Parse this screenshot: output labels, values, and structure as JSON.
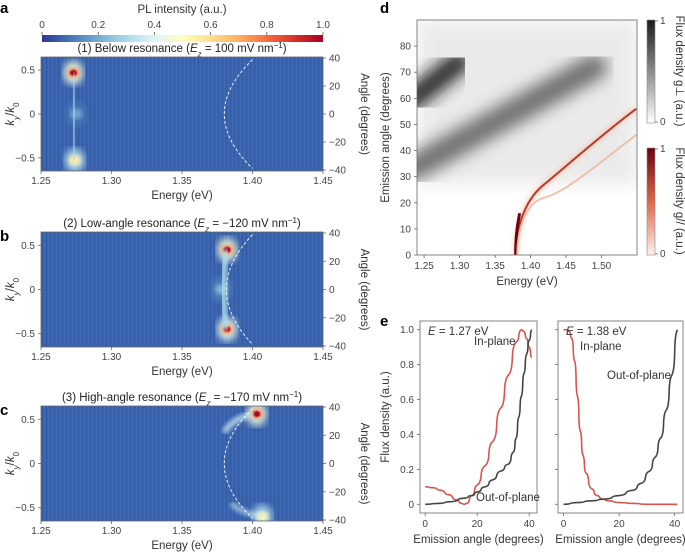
{
  "panels": {
    "a": "a",
    "b": "b",
    "c": "c",
    "d": "d",
    "e": "e"
  },
  "colorbar_pl": {
    "label": "PL intensity (a.u.)",
    "ticks": [
      "0",
      "0.2",
      "0.4",
      "0.6",
      "0.8",
      "1.0"
    ],
    "colors": [
      "#313695",
      "#4575b4",
      "#74add1",
      "#abd9e9",
      "#e0f3f8",
      "#ffffbf",
      "#fee090",
      "#fdae61",
      "#f46d43",
      "#d73027",
      "#a50026"
    ]
  },
  "chart_data": [
    {
      "id": "a",
      "type": "heatmap",
      "title_prefix": "(1) Below resonance (",
      "title_field": "E",
      "title_sub": "z",
      "title_value": " = 100 mV nm",
      "title_sup": "−1",
      "title_suffix": ")",
      "xlabel": "Energy (eV)",
      "ylabel_left": "ky/k0",
      "ylabel_right": "Angle (degrees)",
      "xlim": [
        1.25,
        1.45
      ],
      "ylim": [
        -0.65,
        0.65
      ],
      "xticks": [
        "1.25",
        "1.30",
        "1.35",
        "1.40",
        "1.45"
      ],
      "yticks_left": [
        "0.5",
        "0",
        "−0.5"
      ],
      "yticks_right": [
        "40",
        "20",
        "0",
        "−20",
        "−40"
      ],
      "spots": [
        {
          "E": 1.273,
          "k": 0.47,
          "intensity": 1.0
        },
        {
          "E": 1.274,
          "k": -0.53,
          "intensity": 0.75
        },
        {
          "E": 1.275,
          "k": 0.0,
          "intensity": 0.25
        }
      ],
      "dashed_curve": {
        "E_min": 1.372,
        "E_max": 1.4
      }
    },
    {
      "id": "b",
      "type": "heatmap",
      "title_prefix": "(2) Low-angle resonance (",
      "title_field": "E",
      "title_sub": "z",
      "title_value": " = −120 mV nm",
      "title_sup": "−1",
      "title_suffix": ")",
      "xlabel": "Energy (eV)",
      "ylabel_left": "ky/k0",
      "ylabel_right": "Angle (degrees)",
      "xlim": [
        1.25,
        1.45
      ],
      "ylim": [
        -0.65,
        0.65
      ],
      "xticks": [
        "1.25",
        "1.30",
        "1.35",
        "1.40",
        "1.45"
      ],
      "yticks_left": [
        "0.5",
        "0",
        "−0.5"
      ],
      "yticks_right": [
        "40",
        "20",
        "0",
        "−20",
        "−40"
      ],
      "spots": [
        {
          "E": 1.382,
          "k": 0.45,
          "intensity": 1.0
        },
        {
          "E": 1.382,
          "k": -0.45,
          "intensity": 0.95
        },
        {
          "E": 1.378,
          "k": 0.0,
          "intensity": 0.3
        }
      ],
      "dashed_curve": {
        "E_min": 1.375,
        "E_max": 1.4
      }
    },
    {
      "id": "c",
      "type": "heatmap",
      "title_prefix": "(3) High-angle resonance (",
      "title_field": "E",
      "title_sub": "z",
      "title_value": " = −170 mV nm",
      "title_sup": "−1",
      "title_suffix": ")",
      "xlabel": "Energy (eV)",
      "ylabel_left": "ky/k0",
      "ylabel_right": "Angle (degrees)",
      "xlim": [
        1.25,
        1.45
      ],
      "ylim": [
        -0.65,
        0.65
      ],
      "xticks": [
        "1.25",
        "1.30",
        "1.35",
        "1.40",
        "1.45"
      ],
      "yticks_left": [
        "0.5",
        "0",
        "−0.5"
      ],
      "yticks_right": [
        "40",
        "20",
        "0",
        "−20",
        "−40"
      ],
      "spots": [
        {
          "E": 1.403,
          "k": 0.56,
          "intensity": 1.0
        },
        {
          "E": 1.407,
          "k": -0.6,
          "intensity": 0.7
        }
      ],
      "dashed_curve": {
        "E_min": 1.372,
        "E_max": 1.4
      }
    },
    {
      "id": "d",
      "type": "heatmap",
      "xlabel": "Energy (eV)",
      "ylabel": "Emission angle (degrees)",
      "xlim": [
        1.24,
        1.55
      ],
      "ylim": [
        0,
        90
      ],
      "xticks": [
        "1.25",
        "1.30",
        "1.35",
        "1.40",
        "1.45",
        "1.50"
      ],
      "xtick_values": [
        1.25,
        1.3,
        1.35,
        1.4,
        1.45,
        1.5
      ],
      "yticks": [
        "0",
        "10",
        "20",
        "30",
        "40",
        "50",
        "60",
        "70",
        "80"
      ],
      "ytick_values": [
        0,
        10,
        20,
        30,
        40,
        50,
        60,
        70,
        80
      ],
      "gray_bands": [
        {
          "E0": 1.24,
          "a0": 60,
          "E1": 1.3,
          "a1": 74,
          "strength": 0.95
        },
        {
          "E0": 1.24,
          "a0": 34,
          "E1": 1.49,
          "a1": 72,
          "strength": 0.75
        }
      ],
      "red_curves": [
        {
          "E0": 1.379,
          "E_end": 1.549,
          "a_end": 56,
          "strength": 1.0
        },
        {
          "E0": 1.381,
          "E_end": 1.549,
          "a_end": 46,
          "strength": 0.3
        }
      ],
      "colorbar_perp": {
        "label": "Flux density g⊥ (a.u.)",
        "max": "1",
        "min": "0"
      },
      "colorbar_par": {
        "label": "Flux density g// (a.u.)",
        "max": "1",
        "min": "0"
      }
    },
    {
      "id": "e-left",
      "type": "line",
      "annotation_field": "E",
      "annotation_value": " = 1.27 eV",
      "xlabel": "Emission angle (degrees)",
      "ylabel": "Flux density (a.u.)",
      "xlim": [
        -2,
        43
      ],
      "ylim": [
        -0.05,
        1.05
      ],
      "xticks": [
        "0",
        "20",
        "40"
      ],
      "xtick_values": [
        0,
        20,
        40
      ],
      "yticks": [
        "0",
        "0.2",
        "0.4",
        "0.6",
        "0.8",
        "1.0"
      ],
      "ytick_values": [
        0,
        0.2,
        0.4,
        0.6,
        0.8,
        1.0
      ],
      "series": [
        {
          "name": "In-plane",
          "color": "#d9534f",
          "x": [
            0,
            3,
            6,
            9,
            12,
            14,
            15,
            16,
            18,
            20,
            23,
            26,
            29,
            32,
            35,
            37,
            38,
            39,
            40,
            41
          ],
          "y": [
            0.1,
            0.095,
            0.08,
            0.055,
            0.025,
            0.005,
            0.0,
            0.005,
            0.05,
            0.11,
            0.22,
            0.36,
            0.55,
            0.74,
            0.93,
            1.0,
            0.99,
            0.95,
            0.9,
            0.84
          ]
        },
        {
          "name": "Out-of-plane",
          "color": "#444444",
          "x": [
            0,
            5,
            10,
            15,
            18,
            20,
            23,
            26,
            29,
            32,
            34,
            35,
            36,
            37,
            38,
            39,
            40,
            41
          ],
          "y": [
            0.0,
            0.005,
            0.015,
            0.035,
            0.05,
            0.07,
            0.1,
            0.14,
            0.19,
            0.23,
            0.3,
            0.38,
            0.5,
            0.62,
            0.75,
            0.86,
            0.94,
            1.0
          ]
        }
      ],
      "labels": {
        "in_plane": "In-plane",
        "out_of_plane": "Out-of-plane"
      }
    },
    {
      "id": "e-right",
      "type": "line",
      "annotation_field": "E",
      "annotation_value": " = 1.38 eV",
      "xlabel": "Emission angle (degrees)",
      "xlim": [
        -2,
        43
      ],
      "ylim": [
        -0.05,
        1.05
      ],
      "xticks": [
        "0",
        "20",
        "40"
      ],
      "xtick_values": [
        0,
        20,
        40
      ],
      "ytick_values": [
        0,
        0.2,
        0.4,
        0.6,
        0.8,
        1.0
      ],
      "series": [
        {
          "name": "In-plane",
          "color": "#d9534f",
          "x": [
            0,
            1,
            2,
            3,
            4,
            5,
            6,
            7,
            8,
            10,
            12,
            14,
            16,
            20,
            25,
            30,
            41
          ],
          "y": [
            1.0,
            1.0,
            0.99,
            0.95,
            0.82,
            0.62,
            0.42,
            0.28,
            0.18,
            0.09,
            0.05,
            0.03,
            0.02,
            0.01,
            0.005,
            0.0,
            0.0
          ]
        },
        {
          "name": "Out-of-plane",
          "color": "#444444",
          "x": [
            0,
            5,
            10,
            15,
            20,
            25,
            28,
            31,
            33,
            35,
            37,
            39,
            41
          ],
          "y": [
            0.0,
            0.01,
            0.02,
            0.03,
            0.05,
            0.08,
            0.12,
            0.19,
            0.27,
            0.38,
            0.54,
            0.74,
            1.0
          ]
        }
      ],
      "labels": {
        "in_plane": "In-plane",
        "out_of_plane": "Out-of-plane"
      }
    }
  ]
}
